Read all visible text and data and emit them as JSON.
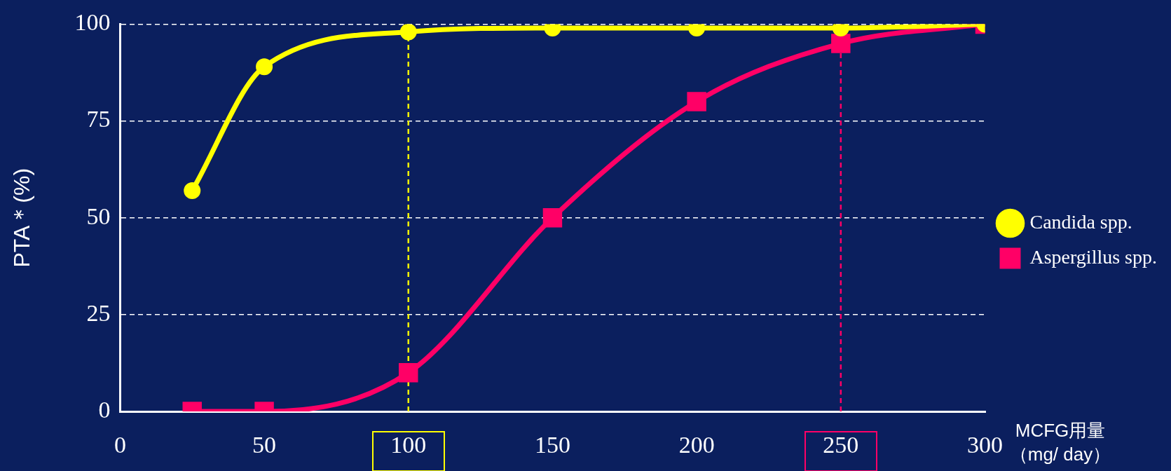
{
  "chart_data": {
    "type": "line",
    "xlabel": "MCFG用量（mg/ day）",
    "ylabel": "PTA＊(%)",
    "x": [
      25,
      50,
      100,
      150,
      200,
      250,
      300
    ],
    "series": [
      {
        "name": "Candida spp.",
        "color": "#ffff00",
        "marker": "circle",
        "values": [
          57,
          89,
          98,
          99,
          99,
          99,
          100
        ]
      },
      {
        "name": "Aspergillus spp.",
        "color": "#ff0066",
        "marker": "square",
        "values": [
          0,
          0,
          10,
          50,
          80,
          95,
          100
        ]
      }
    ],
    "xlim": [
      0,
      300
    ],
    "xticks": [
      0,
      50,
      100,
      150,
      200,
      250,
      300
    ],
    "ylim": [
      0,
      100
    ],
    "yticks": [
      0,
      25,
      50,
      75,
      100
    ],
    "grid": "y",
    "legend": "right",
    "ref_lines": [
      {
        "axis": "x",
        "value": 100,
        "color": "#ffff00",
        "line_style": "dashed"
      },
      {
        "axis": "x",
        "value": 250,
        "color": "#ff0066",
        "line_style": "dashed"
      }
    ]
  }
}
